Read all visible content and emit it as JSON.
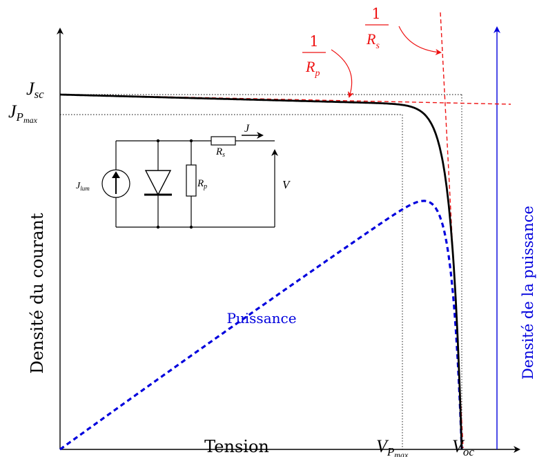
{
  "axes": {
    "x_label": "Tension",
    "y_left_label": "Densité du courant",
    "y_right_label": "Densité de la puissance",
    "x_ticks": {
      "vpmax_base": "V",
      "vpmax_sub": "P",
      "vpmax_subsub": "max",
      "voc_base": "V",
      "voc_sub": "oc"
    },
    "y_ticks": {
      "jsc_base": "J",
      "jsc_sub": "sc",
      "jpmax_base": "J",
      "jpmax_sub": "P",
      "jpmax_subsub": "max"
    }
  },
  "curves": {
    "power_label": "Puissance",
    "current_color": "#000000",
    "power_color": "#0000dd",
    "slope_color": "#ee1111"
  },
  "annotations": {
    "rp_num": "1",
    "rp_den_base": "R",
    "rp_den_sub": "p",
    "rs_num": "1",
    "rs_den_base": "R",
    "rs_den_sub": "s"
  },
  "circuit": {
    "source_base": "J",
    "source_sub": "lum",
    "rp_base": "R",
    "rp_sub": "p",
    "rs_base": "R",
    "rs_sub": "s",
    "current_label": "J",
    "voltage_label": "V"
  }
}
